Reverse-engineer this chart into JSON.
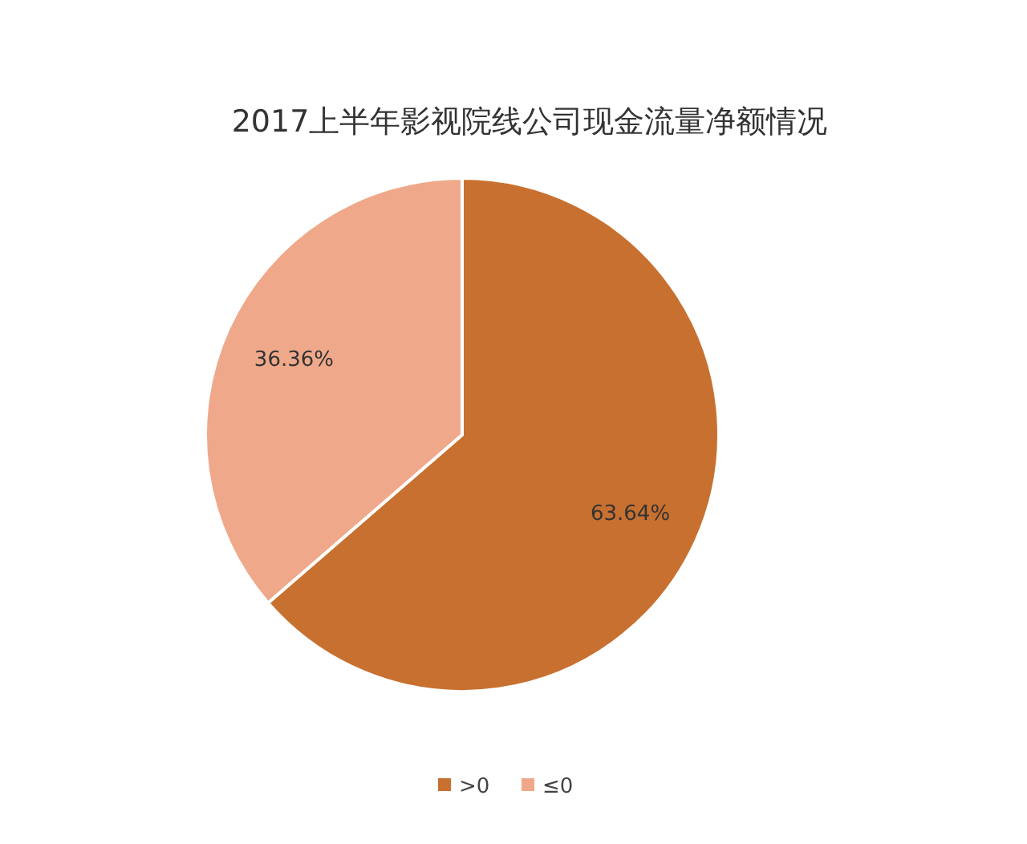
{
  "chart_data": {
    "type": "pie",
    "title": "2017上半年影视院线公司现金流量净额情况",
    "categories": [
      ">0",
      "≤0"
    ],
    "values": [
      63.64,
      36.36
    ],
    "value_labels": [
      "63.64%",
      "36.36%"
    ],
    "colors": [
      "#c8702f",
      "#efa98a"
    ],
    "legend": "bottom"
  }
}
